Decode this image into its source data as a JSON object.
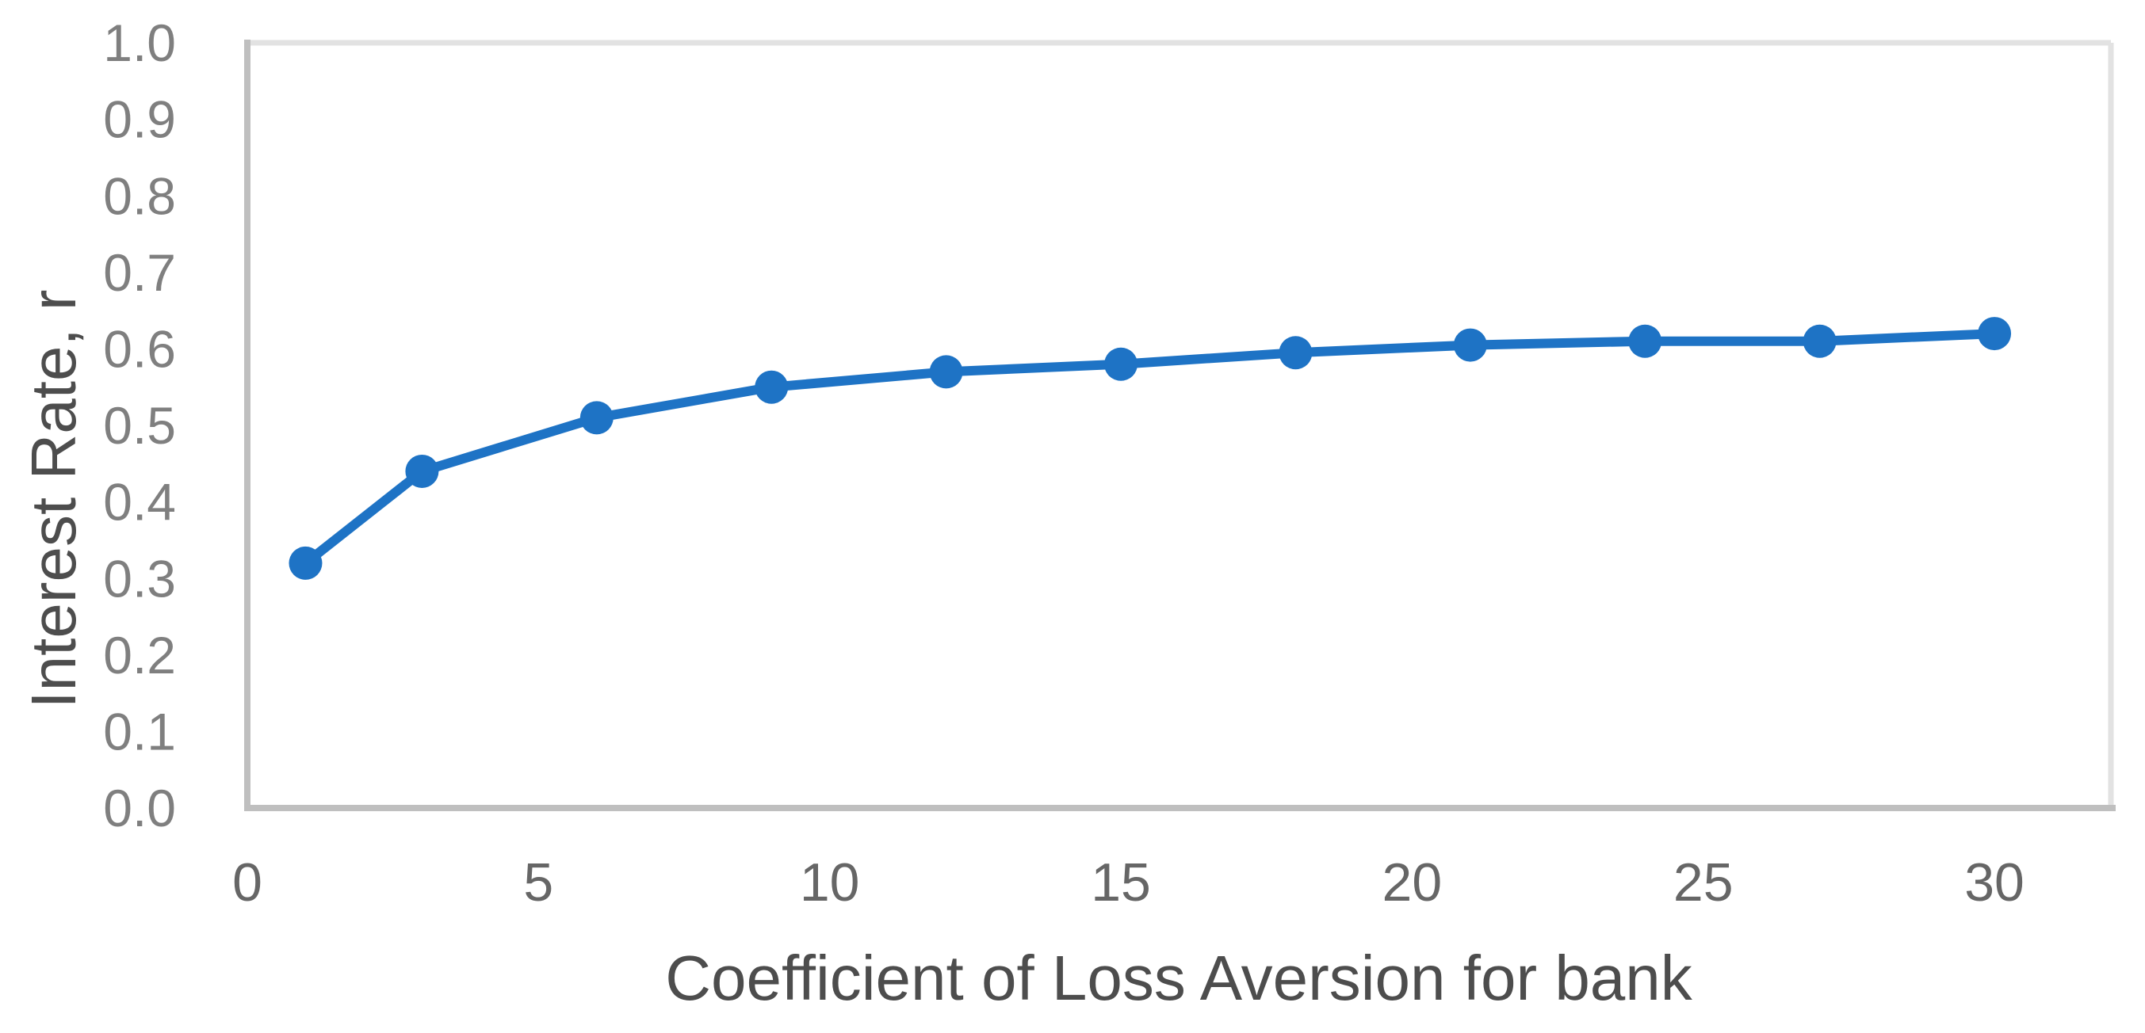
{
  "chart_data": {
    "type": "line",
    "title": "",
    "xlabel": "Coefficient of Loss Aversion for bank",
    "ylabel": "Interest Rate, r",
    "x": [
      1,
      3,
      6,
      9,
      12,
      15,
      18,
      21,
      24,
      27,
      30
    ],
    "values": [
      0.32,
      0.44,
      0.51,
      0.55,
      0.57,
      0.58,
      0.595,
      0.605,
      0.61,
      0.61,
      0.62
    ],
    "x_tick_labels": [
      "0",
      "5",
      "10",
      "15",
      "20",
      "25",
      "30"
    ],
    "y_tick_labels": [
      "0.0",
      "0.1",
      "0.2",
      "0.3",
      "0.4",
      "0.5",
      "0.6",
      "0.7",
      "0.8",
      "0.9",
      "1.0"
    ],
    "xlim": [
      0,
      32
    ],
    "ylim": [
      0,
      1
    ],
    "grid": false,
    "legend": "none",
    "marker": "circle",
    "colors": {
      "line": "#1E73C5",
      "marker": "#1E73C5",
      "axis_line": "#BFBFBF",
      "plot_border": "#E2E2E2",
      "y_tick_label": "#7F7F7F",
      "x_tick_label": "#666666",
      "axis_title": "#4D4D4D",
      "background": "#FFFFFF"
    }
  }
}
